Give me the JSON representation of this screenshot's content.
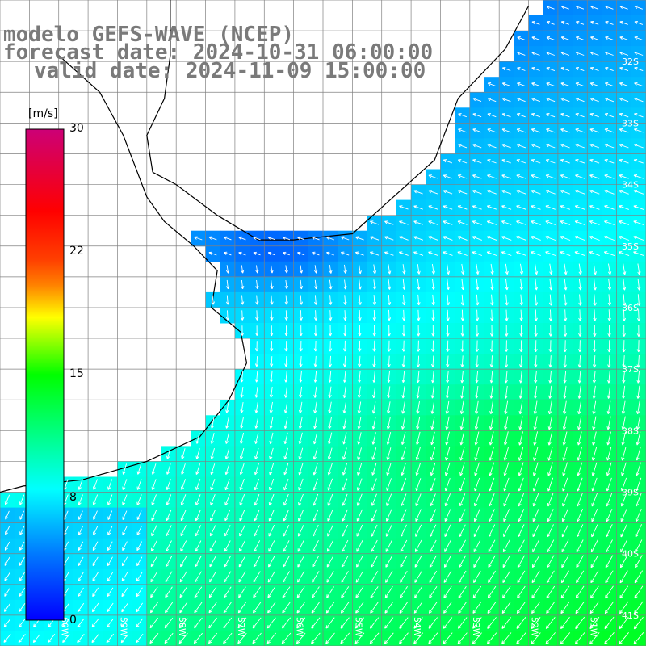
{
  "title": {
    "line1": "modelo GEFS-WAVE (NCEP)",
    "line2": "forecast date: 2024-10-31 06:00:00",
    "line3": "valid date: 2024-11-09 15:00:00"
  },
  "colorbar": {
    "unit": "[m/s]",
    "ticks": [
      {
        "label": "30",
        "value": 30
      },
      {
        "label": "22",
        "value": 22
      },
      {
        "label": "15",
        "value": 15
      },
      {
        "label": "8",
        "value": 8
      },
      {
        "label": "0",
        "value": 0
      }
    ],
    "stops": [
      {
        "value": 0,
        "color": "#0000ff"
      },
      {
        "value": 4,
        "color": "#0078ff"
      },
      {
        "value": 8,
        "color": "#00ffff"
      },
      {
        "value": 11.5,
        "color": "#00ff80"
      },
      {
        "value": 15,
        "color": "#00ff00"
      },
      {
        "value": 18.5,
        "color": "#ffff00"
      },
      {
        "value": 20.5,
        "color": "#ff8000"
      },
      {
        "value": 22,
        "color": "#ff4000"
      },
      {
        "value": 25,
        "color": "#ff0000"
      },
      {
        "value": 30,
        "color": "#cc0077"
      }
    ]
  },
  "map": {
    "projection": "cylindrical",
    "lon_range": [
      -61,
      -50
    ],
    "lat_range": [
      -41.5,
      -31
    ],
    "gridline_color": "#808080",
    "coastline_color": "#000000",
    "arrow_color": "#ffffff",
    "land_color": "#ffffff",
    "lat_labels": [
      "32S",
      "33S",
      "34S",
      "35S",
      "36S",
      "37S",
      "38S",
      "39S",
      "40S",
      "41S"
    ],
    "lon_labels": [
      "60W",
      "59W",
      "58W",
      "57W",
      "56W",
      "55W",
      "54W",
      "53W",
      "52W",
      "51W"
    ]
  }
}
